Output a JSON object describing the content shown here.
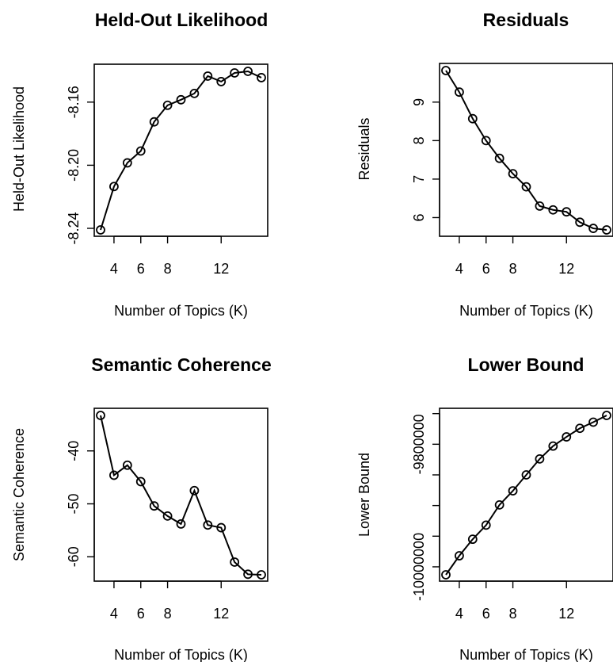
{
  "chart_data": [
    {
      "type": "line",
      "title": "Held-Out Likelihood",
      "xlabel": "Number of Topics (K)",
      "ylabel": "Held-Out Likelihood",
      "x": [
        3,
        4,
        5,
        6,
        7,
        8,
        9,
        10,
        11,
        12,
        13,
        14,
        15
      ],
      "series": [
        {
          "values": [
            -8.241,
            -8.2135,
            -8.1985,
            -8.191,
            -8.1725,
            -8.162,
            -8.1585,
            -8.1545,
            -8.1435,
            -8.147,
            -8.1415,
            -8.1405,
            -8.1445
          ]
        }
      ],
      "xticks": [
        4,
        6,
        8,
        12
      ],
      "xtick_labels": [
        "4",
        "6",
        "8",
        "12"
      ],
      "yticks": [
        -8.24,
        -8.2,
        -8.16
      ],
      "ytick_labels": [
        "-8.24",
        "-8.20",
        "-8.16"
      ],
      "xlim": [
        3,
        15
      ],
      "ylim": [
        -8.241,
        -8.1405
      ],
      "markers": "open-circle"
    },
    {
      "type": "line",
      "title": "Residuals",
      "xlabel": "Number of Topics (K)",
      "ylabel": "Residuals",
      "x": [
        3,
        4,
        5,
        6,
        7,
        8,
        9,
        10,
        11,
        12,
        13,
        14,
        15
      ],
      "series": [
        {
          "values": [
            9.82,
            9.26,
            8.57,
            8.0,
            7.54,
            7.14,
            6.8,
            6.3,
            6.2,
            6.15,
            5.88,
            5.72,
            5.68
          ]
        }
      ],
      "xticks": [
        4,
        6,
        8,
        12
      ],
      "xtick_labels": [
        "4",
        "6",
        "8",
        "12"
      ],
      "yticks": [
        6,
        7,
        8,
        9
      ],
      "ytick_labels": [
        "6",
        "7",
        "8",
        "9"
      ],
      "xlim": [
        3,
        15
      ],
      "ylim": [
        5.68,
        9.82
      ],
      "markers": "open-circle"
    },
    {
      "type": "line",
      "title": "Semantic Coherence",
      "xlabel": "Number of Topics (K)",
      "ylabel": "Semantic Coherence",
      "x": [
        3,
        4,
        5,
        6,
        7,
        8,
        9,
        10,
        11,
        12,
        13,
        14,
        15
      ],
      "series": [
        {
          "values": [
            -33.3,
            -44.6,
            -42.7,
            -45.8,
            -50.4,
            -52.3,
            -53.8,
            -47.5,
            -54.0,
            -54.5,
            -61.0,
            -63.3,
            -63.4
          ]
        }
      ],
      "xticks": [
        4,
        6,
        8,
        12
      ],
      "xtick_labels": [
        "4",
        "6",
        "8",
        "12"
      ],
      "yticks": [
        -60,
        -50,
        -40
      ],
      "ytick_labels": [
        "-60",
        "-50",
        "-40"
      ],
      "xlim": [
        3,
        15
      ],
      "ylim": [
        -63.4,
        -33.3
      ],
      "markers": "open-circle"
    },
    {
      "type": "line",
      "title": "Lower Bound",
      "xlabel": "Number of Topics (K)",
      "ylabel": "Lower Bound",
      "x": [
        3,
        4,
        5,
        6,
        7,
        8,
        9,
        10,
        11,
        12,
        13,
        14,
        15
      ],
      "series": [
        {
          "values": [
            -10013000,
            -9982000,
            -9955000,
            -9932000,
            -9899000,
            -9876000,
            -9850000,
            -9824000,
            -9803000,
            -9788000,
            -9774000,
            -9764000,
            -9753000
          ]
        }
      ],
      "xticks": [
        4,
        6,
        8,
        12
      ],
      "xtick_labels": [
        "4",
        "6",
        "8",
        "12"
      ],
      "yticks": [
        -10000000,
        -9900000,
        -9800000
      ],
      "ytick_labels": [
        "-10000000",
        "",
        "-9800000"
      ],
      "minor_yticks": [
        -9950000,
        -9850000,
        -9750000
      ],
      "xlim": [
        3,
        15
      ],
      "ylim": [
        -10013000,
        -9753000
      ],
      "markers": "open-circle"
    }
  ]
}
